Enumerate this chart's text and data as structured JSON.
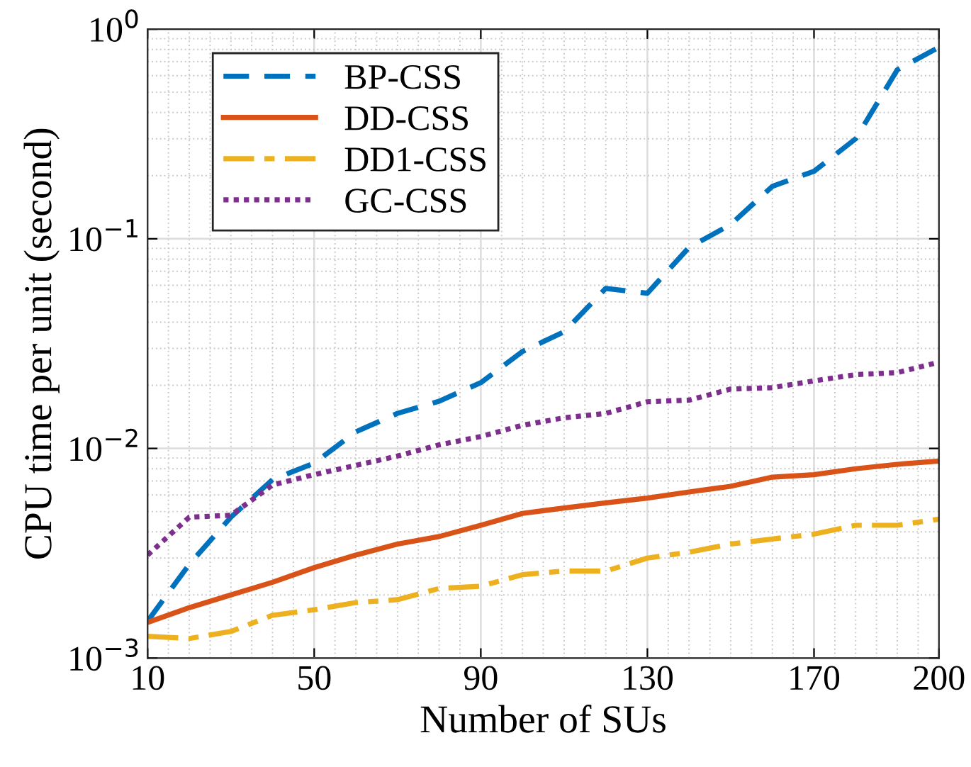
{
  "chart_data": {
    "type": "line",
    "xlabel": "Number of SUs",
    "ylabel": "CPU time per unit (second)",
    "x": [
      10,
      20,
      30,
      40,
      50,
      60,
      70,
      80,
      90,
      100,
      110,
      120,
      130,
      140,
      150,
      160,
      170,
      180,
      190,
      200
    ],
    "series": [
      {
        "name": "BP-CSS",
        "color": "#0072bd",
        "line_style": "dashed",
        "values": [
          0.0015,
          0.0028,
          0.0047,
          0.0071,
          0.0085,
          0.012,
          0.0147,
          0.0168,
          0.0206,
          0.029,
          0.036,
          0.058,
          0.055,
          0.091,
          0.117,
          0.178,
          0.21,
          0.3,
          0.64,
          0.82
        ]
      },
      {
        "name": "DD-CSS",
        "color": "#d95319",
        "line_style": "solid",
        "values": [
          0.00148,
          0.00174,
          0.002,
          0.0023,
          0.0027,
          0.0031,
          0.0035,
          0.0038,
          0.0043,
          0.0049,
          0.0052,
          0.0055,
          0.0058,
          0.0062,
          0.0066,
          0.0073,
          0.0075,
          0.008,
          0.0084,
          0.0087
        ]
      },
      {
        "name": "DD1-CSS",
        "color": "#edb120",
        "line_style": "dashdot",
        "values": [
          0.00127,
          0.00124,
          0.00134,
          0.0016,
          0.0017,
          0.00184,
          0.0019,
          0.00215,
          0.0022,
          0.0025,
          0.0026,
          0.0026,
          0.003,
          0.0032,
          0.0035,
          0.0037,
          0.0039,
          0.0043,
          0.0043,
          0.0046
        ]
      },
      {
        "name": "GC-CSS",
        "color": "#7e2f8e",
        "line_style": "dotted",
        "values": [
          0.0031,
          0.0047,
          0.0048,
          0.0067,
          0.0075,
          0.0083,
          0.0092,
          0.0104,
          0.0114,
          0.0129,
          0.014,
          0.0147,
          0.0167,
          0.017,
          0.0192,
          0.0195,
          0.021,
          0.0225,
          0.023,
          0.0258
        ]
      }
    ],
    "log": "y",
    "xlim": [
      10,
      200
    ],
    "xticks": [
      10,
      50,
      90,
      130,
      170,
      200
    ],
    "ylim": [
      0.001,
      1
    ],
    "yticks": [
      {
        "value": 0.001,
        "label": "10$^{−3}$"
      },
      {
        "value": 0.01,
        "label": "10$^{−2}$"
      },
      {
        "value": 0.1,
        "label": "10$^{−1}$"
      },
      {
        "value": 1,
        "label": "10$^{0}$"
      }
    ],
    "grid": true,
    "legend": "top left"
  }
}
